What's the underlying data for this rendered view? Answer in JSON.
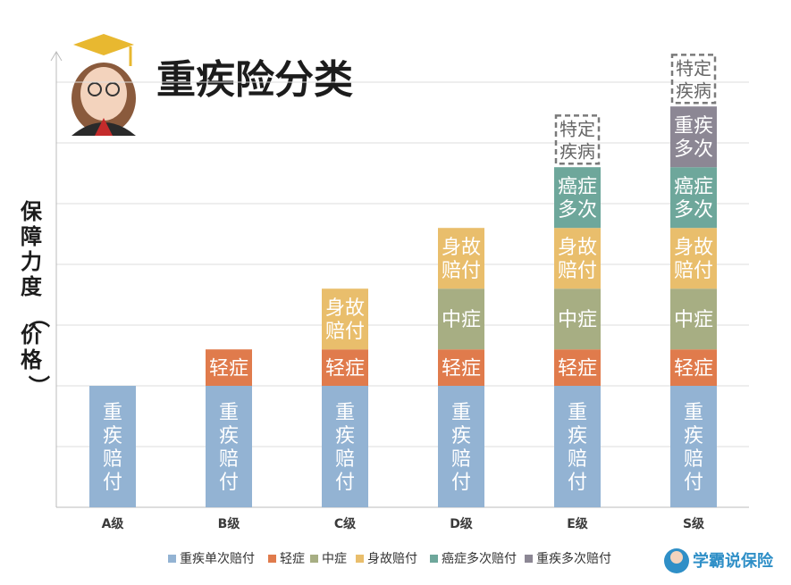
{
  "chart_data": {
    "type": "bar",
    "stacked": true,
    "title": "重疾险分类",
    "ylabel": "保障力度（价格）",
    "xlabel": "",
    "categories": [
      "A级",
      "B级",
      "C级",
      "D级",
      "E级",
      "S级"
    ],
    "ylim": [
      0,
      7.5
    ],
    "grid": true,
    "series": [
      {
        "name": "重疾单次赔付",
        "label": "重疾赔付",
        "color": "#93b3d3",
        "values": [
          2,
          2,
          2,
          2,
          2,
          2
        ]
      },
      {
        "name": "轻症",
        "label": "轻症",
        "color": "#e07b4c",
        "values": [
          0,
          0.6,
          0.6,
          0.6,
          0.6,
          0.6
        ]
      },
      {
        "name": "中症",
        "label": "中症",
        "color": "#a7ae83",
        "values": [
          0,
          0,
          0,
          1,
          1,
          1
        ]
      },
      {
        "name": "身故赔付",
        "label": "身故赔付",
        "color": "#e9be6c",
        "values": [
          0,
          0,
          1,
          1,
          1,
          1
        ]
      },
      {
        "name": "癌症多次赔付",
        "label": "癌症多次",
        "color": "#6ea79b",
        "values": [
          0,
          0,
          0,
          0,
          1,
          1
        ]
      },
      {
        "name": "重疾多次赔付",
        "label": "重疾多次",
        "color": "#8c8794",
        "values": [
          0,
          0,
          0,
          0,
          0,
          1
        ]
      }
    ],
    "special_coverage": {
      "label": "特定疾病",
      "values": [
        0,
        0,
        0,
        0,
        0.85,
        0.85
      ]
    },
    "legend_position": "bottom"
  },
  "brand": {
    "name": "学霸说保险"
  },
  "colors": {
    "grid": "#dddddd",
    "axis": "#bbbbbb",
    "text": "#1c1c1c",
    "special_border": "#7a7a7a"
  }
}
